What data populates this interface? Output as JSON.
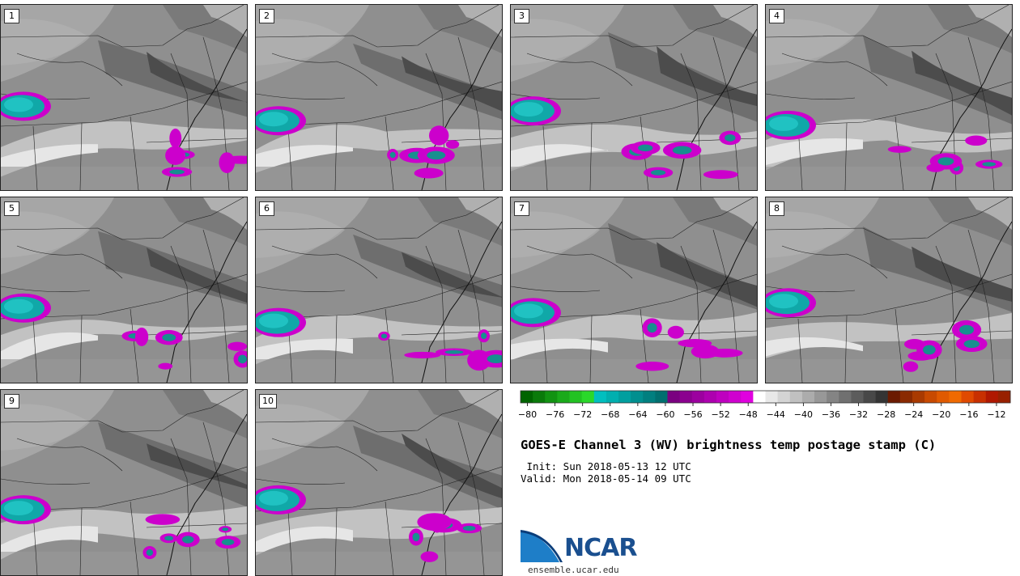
{
  "title": "GOES-E Channel 3 (WV) brightness temp postage stamp (C)",
  "init": " Init: Sun 2018-05-13 12 UTC",
  "valid": "Valid: Mon 2018-05-14 09 UTC",
  "logo": {
    "name": "NCAR",
    "site": "ensemble.ucar.edu"
  },
  "members": [
    "1",
    "2",
    "3",
    "4",
    "5",
    "6",
    "7",
    "8",
    "9",
    "10"
  ],
  "colorbar": {
    "ticks": [
      -80,
      -76,
      -72,
      -68,
      -64,
      -60,
      -56,
      -52,
      -48,
      -44,
      -40,
      -36,
      -32,
      -28,
      -24,
      -20,
      -16,
      -12
    ],
    "tick_labels": [
      "−80",
      "−76",
      "−72",
      "−68",
      "−64",
      "−60",
      "−56",
      "−52",
      "−48",
      "−44",
      "−40",
      "−36",
      "−32",
      "−28",
      "−24",
      "−20",
      "−16",
      "−12"
    ],
    "min": -81,
    "max": -10,
    "step": 2,
    "colors": [
      "#006400",
      "#0a7a0a",
      "#129312",
      "#1aaa1a",
      "#22c222",
      "#2ad82a",
      "#00bfbf",
      "#00afaf",
      "#009f9f",
      "#008f8f",
      "#007f7f",
      "#006f6f",
      "#7a0080",
      "#8b008f",
      "#9c009f",
      "#ad00af",
      "#be00bf",
      "#cf00cf",
      "#e000df",
      "#ffffff",
      "#e8e8e8",
      "#d4d4d4",
      "#c0c0c0",
      "#acacac",
      "#989898",
      "#848484",
      "#707070",
      "#5c5c5c",
      "#484848",
      "#343434",
      "#6b1a00",
      "#8a2a00",
      "#a93a00",
      "#c84a00",
      "#e05a00",
      "#f06a00",
      "#e04a00",
      "#c83000",
      "#b01800",
      "#982000"
    ]
  }
}
